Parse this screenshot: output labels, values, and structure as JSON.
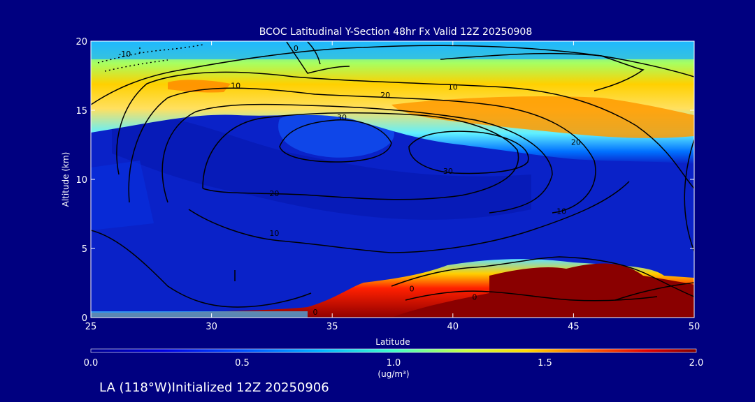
{
  "title": "BCOC Latitudinal Y-Section 48hr  Fx Valid 12Z 20250908",
  "footer": "LA (118°W)Initialized 12Z 20250906",
  "colors": {
    "background": "#000080",
    "plot_base": "#0a22c8",
    "contour": "#000000",
    "text": "#ffffff"
  },
  "chart_data": {
    "type": "heatmap",
    "xlabel": "Latitude",
    "ylabel": "Altitude (km)",
    "xlim": [
      25,
      50
    ],
    "ylim": [
      0,
      20
    ],
    "x_ticks": [
      25,
      30,
      35,
      40,
      45,
      50
    ],
    "y_ticks": [
      0,
      5,
      10,
      15,
      20
    ],
    "colorbar": {
      "min": 0.0,
      "max": 2.0,
      "ticks": [
        "0.0",
        "0.5",
        "1.0",
        "1.5",
        "2.0"
      ],
      "unit": "(ug/m³)"
    },
    "contour_labels": [
      {
        "text": "-10",
        "lat": 26.4,
        "alt": 19.1
      },
      {
        "text": "0",
        "lat": 33.5,
        "alt": 19.5
      },
      {
        "text": "10",
        "lat": 31.0,
        "alt": 16.8
      },
      {
        "text": "10",
        "lat": 40.0,
        "alt": 16.7
      },
      {
        "text": "20",
        "lat": 37.2,
        "alt": 16.1
      },
      {
        "text": "30",
        "lat": 35.4,
        "alt": 14.5
      },
      {
        "text": "20",
        "lat": 45.1,
        "alt": 12.7
      },
      {
        "text": "30",
        "lat": 39.8,
        "alt": 10.6
      },
      {
        "text": "20",
        "lat": 32.6,
        "alt": 9.0
      },
      {
        "text": "10",
        "lat": 44.5,
        "alt": 7.7
      },
      {
        "text": "10",
        "lat": 32.6,
        "alt": 6.1
      },
      {
        "text": "0",
        "lat": 38.3,
        "alt": 2.1
      },
      {
        "text": "0",
        "lat": 34.3,
        "alt": 0.4
      },
      {
        "text": "0",
        "lat": 40.9,
        "alt": 1.5
      }
    ]
  }
}
